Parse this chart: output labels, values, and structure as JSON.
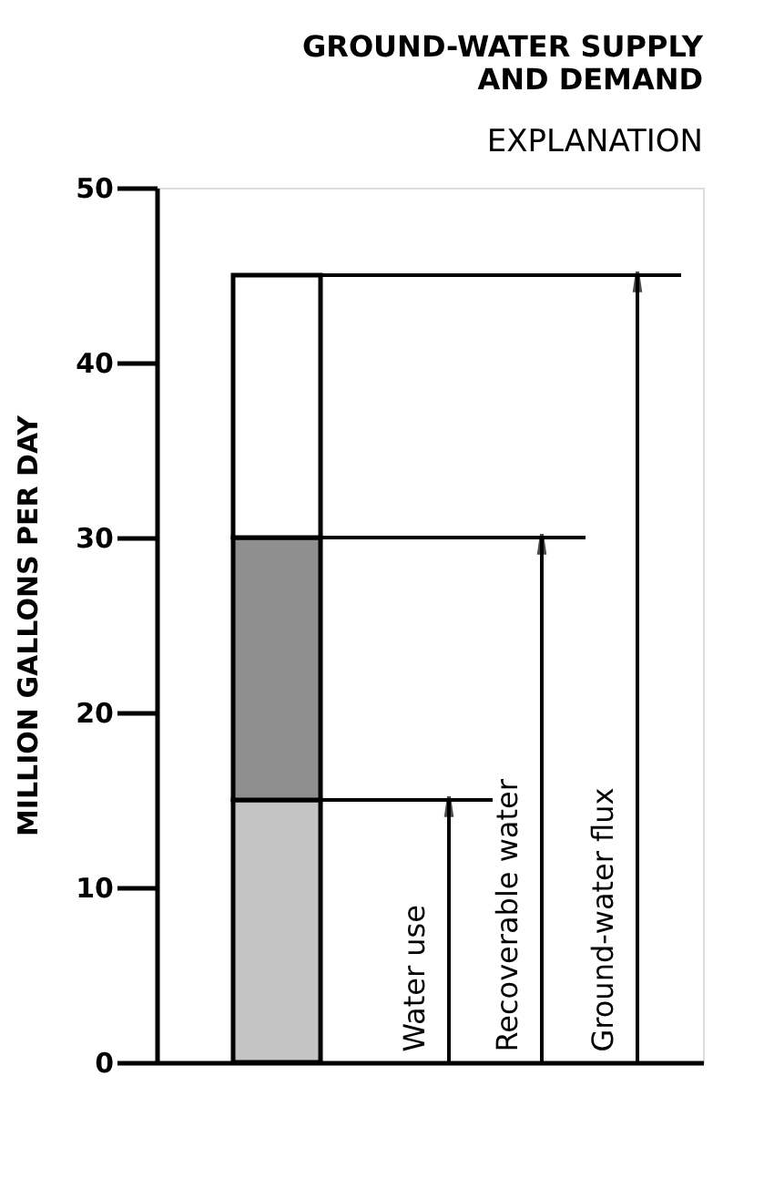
{
  "chart_data": {
    "type": "bar",
    "stacked": true,
    "title": [
      "GROUND-WATER SUPPLY",
      "AND DEMAND"
    ],
    "subtitle": "EXPLANATION",
    "ylabel": "MILLION GALLONS PER DAY",
    "categories": [
      null
    ],
    "series": [
      {
        "color": "#c4c4c4",
        "values": [
          15
        ]
      },
      {
        "color": "#8f8f8f",
        "values": [
          15
        ]
      },
      {
        "color": "#ffffff",
        "values": [
          15
        ]
      }
    ],
    "ylim": [
      0,
      50
    ],
    "yticks": [
      0,
      10,
      20,
      30,
      40,
      50
    ],
    "grid": false,
    "ref_lines": [
      {
        "axis": "y",
        "value": 15,
        "label": "Water use"
      },
      {
        "axis": "y",
        "value": 30,
        "label": "Recoverable water"
      },
      {
        "axis": "y",
        "value": 45,
        "label": "Ground-water flux"
      }
    ]
  }
}
